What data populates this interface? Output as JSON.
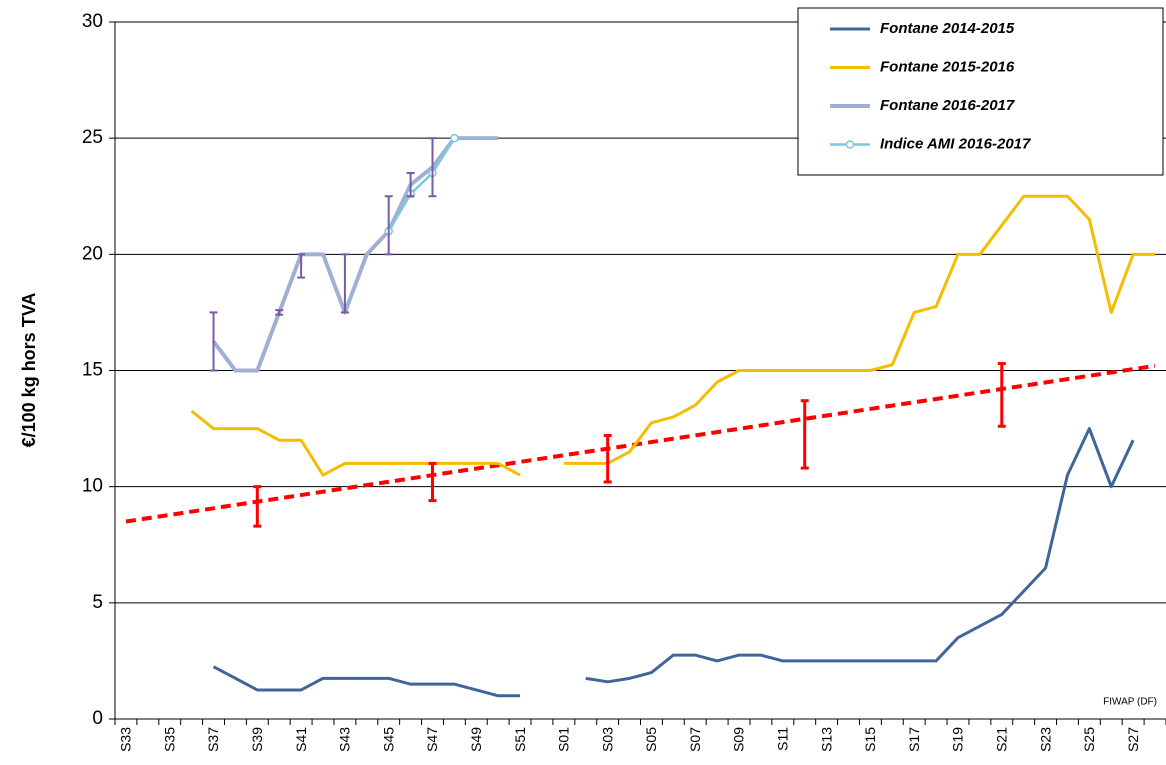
{
  "chart_data": {
    "type": "line",
    "y_label": "€/100 kg hors TVA",
    "annotation": "FIWAP (DF)",
    "categories": [
      "S33",
      null,
      "S35",
      null,
      "S37",
      null,
      "S39",
      null,
      "S41",
      null,
      "S43",
      null,
      "S45",
      null,
      "S47",
      null,
      "S49",
      null,
      "S51",
      null,
      "S01",
      null,
      "S03",
      null,
      "S05",
      null,
      "S07",
      null,
      "S09",
      null,
      "S11",
      null,
      "S13",
      null,
      "S15",
      null,
      "S17",
      null,
      "S19",
      null,
      "S21",
      null,
      "S23",
      null,
      "S25",
      null,
      "S27",
      null
    ],
    "ylim": [
      0,
      30
    ],
    "yticks": [
      0,
      5,
      10,
      15,
      20,
      25,
      30
    ],
    "grid": true,
    "legend": "top-right",
    "series": [
      {
        "name": "Fontane 2014-2015",
        "color": "#41659a",
        "width": 3,
        "marker": false,
        "values": [
          null,
          null,
          null,
          null,
          2.25,
          1.75,
          1.25,
          1.25,
          1.25,
          1.75,
          1.75,
          1.75,
          1.75,
          1.5,
          1.5,
          1.5,
          1.25,
          1.0,
          1.0,
          null,
          null,
          1.75,
          1.6,
          1.75,
          2.0,
          2.75,
          2.75,
          2.5,
          2.75,
          2.75,
          2.5,
          2.5,
          2.5,
          2.5,
          2.5,
          2.5,
          2.5,
          2.5,
          3.5,
          4.0,
          4.5,
          5.5,
          6.5,
          10.5,
          12.5,
          10,
          12,
          null
        ]
      },
      {
        "name": "Fontane 2015-2016",
        "color": "#f5bd00",
        "width": 3,
        "marker": false,
        "values": [
          null,
          null,
          null,
          13.25,
          12.5,
          12.5,
          12.5,
          12,
          12,
          10.5,
          11,
          11,
          11,
          11,
          11,
          11,
          11,
          11,
          10.5,
          null,
          11,
          11,
          11,
          11.5,
          12.75,
          13,
          13.5,
          14.5,
          15,
          15,
          15,
          15,
          15,
          15,
          15,
          15.25,
          17.5,
          17.75,
          20,
          20,
          21.25,
          22.5,
          22.5,
          22.5,
          21.5,
          17.5,
          20,
          20
        ]
      },
      {
        "name": "Fontane 2016-2017",
        "color": "#9fb0d4",
        "width": 4,
        "marker": false,
        "values": [
          null,
          null,
          null,
          null,
          16.25,
          15,
          15,
          17.5,
          20,
          20,
          17.5,
          20,
          21,
          23,
          23.75,
          25,
          25,
          25,
          null,
          null,
          null,
          null,
          null,
          null,
          null,
          null,
          null,
          null,
          null,
          null,
          null,
          null,
          null,
          null,
          null,
          null,
          null,
          null,
          null,
          null,
          null,
          null,
          null,
          null,
          null,
          null,
          null,
          null
        ]
      },
      {
        "name": "Indice AMI 2016-2017",
        "color": "#7fc6dc",
        "width": 2.5,
        "marker": true,
        "values": [
          null,
          null,
          null,
          null,
          null,
          null,
          null,
          null,
          null,
          null,
          null,
          null,
          21,
          22.6,
          23.5,
          25,
          null,
          null,
          null,
          null,
          null,
          null,
          null,
          null,
          null,
          null,
          null,
          null,
          null,
          null,
          null,
          null,
          null,
          null,
          null,
          null,
          null,
          null,
          null,
          null,
          null,
          null,
          null,
          null,
          null,
          null,
          null,
          null
        ]
      }
    ],
    "error_bars": [
      {
        "color": "#7b5aa6",
        "low": [
          null,
          null,
          null,
          null,
          15,
          null,
          null,
          17.4,
          19,
          null,
          17.5,
          null,
          20,
          22.5,
          22.5,
          null,
          null,
          null,
          null,
          null,
          null,
          null,
          null,
          null,
          null,
          null,
          null,
          null,
          null,
          null,
          null,
          null,
          null,
          null,
          null,
          null,
          null,
          null,
          null,
          null,
          null,
          null,
          null,
          null,
          null,
          null,
          null,
          null
        ],
        "high": [
          null,
          null,
          null,
          null,
          17.5,
          null,
          null,
          17.6,
          20,
          null,
          20,
          null,
          22.5,
          23.5,
          25,
          null,
          null,
          null,
          null,
          null,
          null,
          null,
          null,
          null,
          null,
          null,
          null,
          null,
          null,
          null,
          null,
          null,
          null,
          null,
          null,
          null,
          null,
          null,
          null,
          null,
          null,
          null,
          null,
          null,
          null,
          null,
          null,
          null
        ]
      },
      {
        "color": "#ff0000",
        "low": [
          null,
          null,
          null,
          null,
          null,
          null,
          8.3,
          null,
          null,
          null,
          null,
          null,
          null,
          null,
          9.4,
          null,
          null,
          null,
          null,
          null,
          null,
          null,
          10.2,
          null,
          null,
          null,
          null,
          null,
          null,
          null,
          null,
          10.8,
          null,
          null,
          null,
          null,
          null,
          null,
          null,
          null,
          12.6,
          null,
          null,
          null,
          null,
          null,
          null,
          null
        ],
        "high": [
          null,
          null,
          null,
          null,
          null,
          null,
          10,
          null,
          null,
          null,
          null,
          null,
          null,
          null,
          11,
          null,
          null,
          null,
          null,
          null,
          null,
          null,
          12.2,
          null,
          null,
          null,
          null,
          null,
          null,
          null,
          null,
          13.7,
          null,
          null,
          null,
          null,
          null,
          null,
          null,
          null,
          15.3,
          null,
          null,
          null,
          null,
          null,
          null,
          null
        ]
      }
    ],
    "trendline": {
      "color": "#ff0000",
      "dashed": true,
      "start": 8.5,
      "end": 15.2
    }
  }
}
